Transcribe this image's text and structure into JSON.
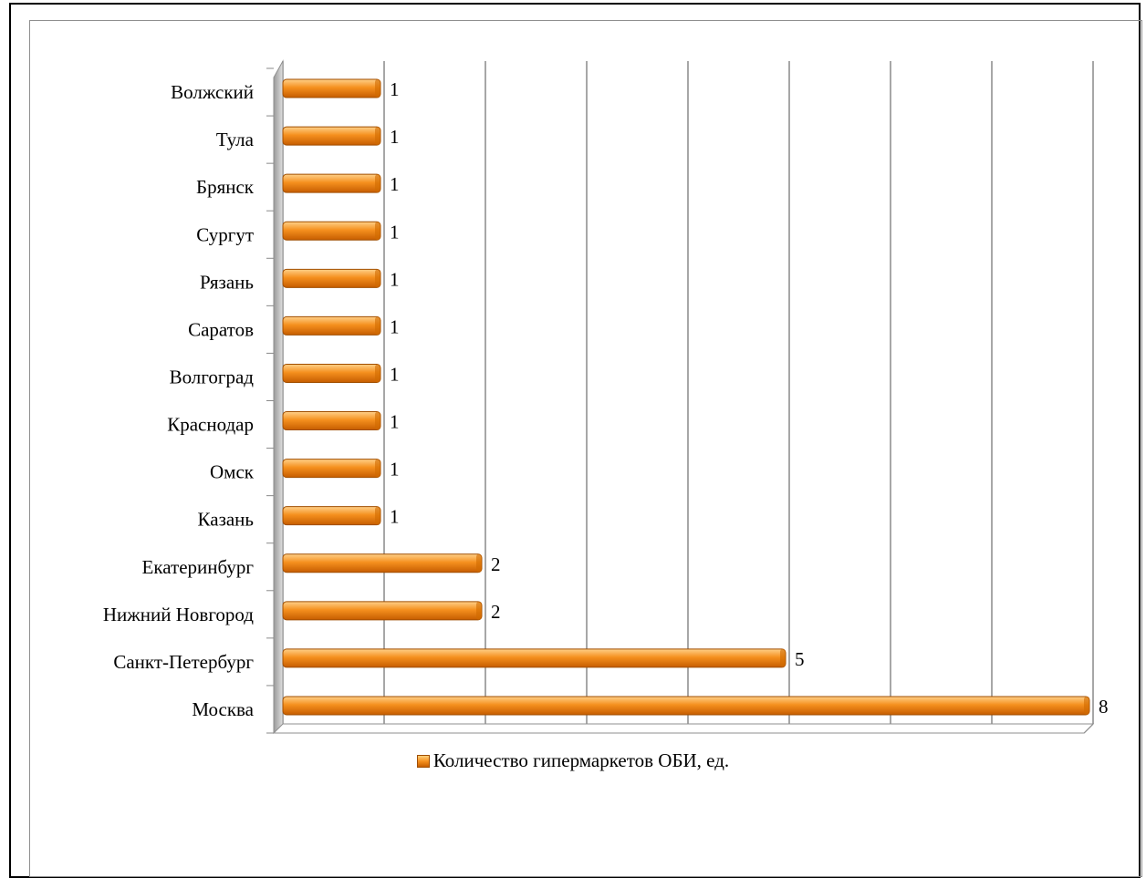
{
  "chart_data": {
    "type": "bar",
    "orientation": "horizontal",
    "categories": [
      "Москва",
      "Санкт-Петербург",
      "Нижний Новгород",
      "Екатеринбург",
      "Казань",
      "Омск",
      "Краснодар",
      "Волгоград",
      "Саратов",
      "Рязань",
      "Сургут",
      "Брянск",
      "Тула",
      "Волжский"
    ],
    "series": [
      {
        "name": "Количество гипермаркетов ОБИ, ед.",
        "values": [
          8,
          5,
          2,
          2,
          1,
          1,
          1,
          1,
          1,
          1,
          1,
          1,
          1,
          1
        ]
      }
    ],
    "xlim": [
      0,
      8
    ],
    "xticks": [
      0,
      1,
      2,
      3,
      4,
      5,
      6,
      7,
      8
    ],
    "grid": "vertical",
    "legend": "bottom",
    "bar_color": "#f28c1a"
  }
}
